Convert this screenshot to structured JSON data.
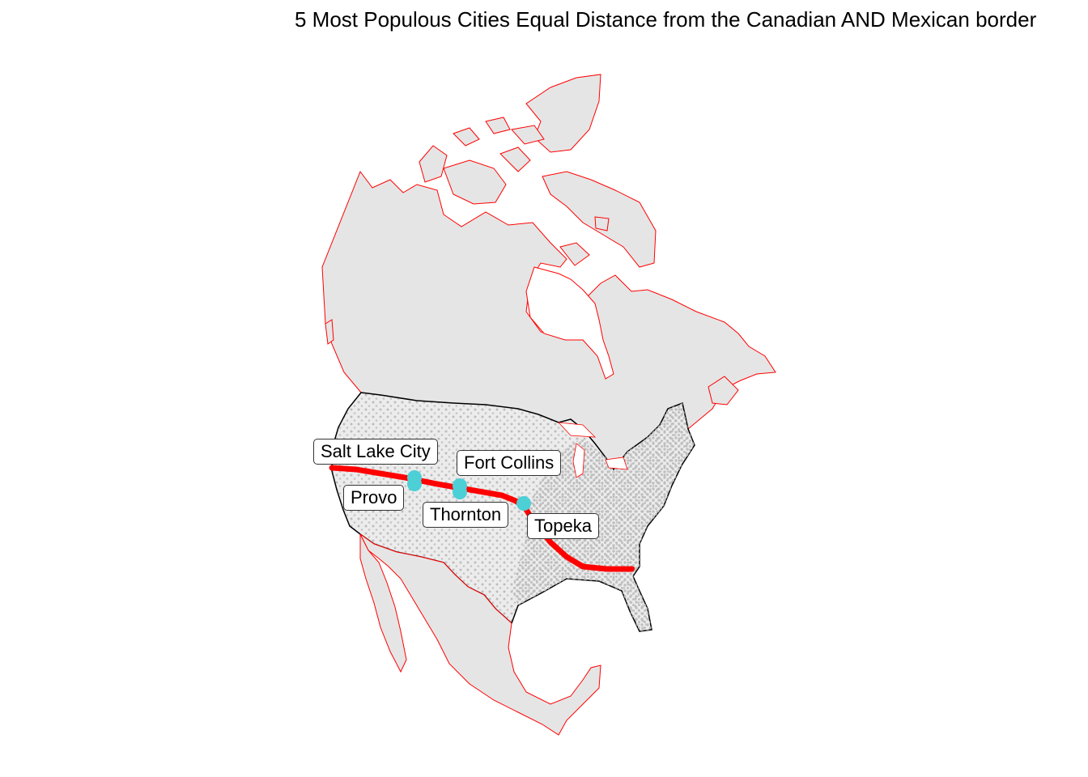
{
  "title": "5 Most Populous Cities Equal Distance from the Canadian AND Mexican border",
  "colors": {
    "land": "#e5e5e5",
    "border": "#ff0000",
    "us_points": "#bdbdbd",
    "equidistant_band": "#ff0000",
    "highlight": "#4dcfd6",
    "us_outline": "#000000"
  },
  "cities": [
    {
      "name": "Salt Lake City"
    },
    {
      "name": "Provo"
    },
    {
      "name": "Fort Collins"
    },
    {
      "name": "Thornton"
    },
    {
      "name": "Topeka"
    }
  ]
}
